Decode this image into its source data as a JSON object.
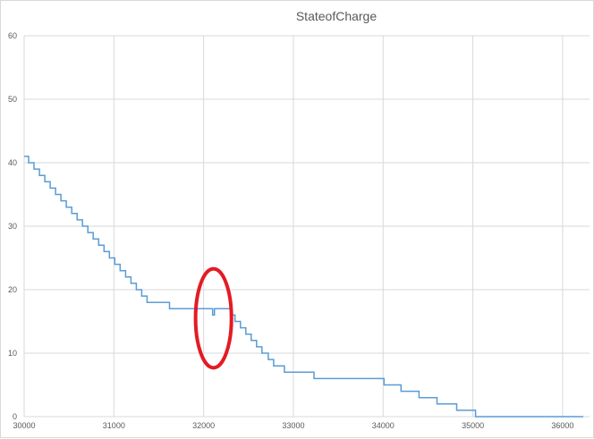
{
  "chart_data": {
    "type": "line",
    "title": "StateofCharge",
    "xlabel": "",
    "ylabel": "",
    "xlim": [
      30000,
      36300
    ],
    "ylim": [
      0,
      60
    ],
    "grid": true,
    "legend": "none",
    "line_color": "#5b9bd5",
    "xticks": [
      30000,
      31000,
      32000,
      33000,
      34000,
      35000,
      36000
    ],
    "yticks": [
      0,
      10,
      20,
      30,
      40,
      50,
      60
    ],
    "xtick_labels": [
      "30000",
      "31000",
      "32000",
      "33000",
      "34000",
      "35000",
      "36000"
    ],
    "ytick_labels": [
      "0",
      "10",
      "20",
      "30",
      "40",
      "50",
      "60"
    ],
    "series": [
      {
        "step": true,
        "x": [
          30000,
          30050,
          30110,
          30170,
          30230,
          30290,
          30350,
          30410,
          30470,
          30530,
          30590,
          30650,
          30710,
          30770,
          30830,
          30890,
          30950,
          31010,
          31070,
          31130,
          31190,
          31250,
          31310,
          31370,
          31620,
          32100,
          32120,
          32300,
          32350,
          32410,
          32470,
          32530,
          32590,
          32650,
          32720,
          32780,
          32840,
          32900,
          33230,
          34010,
          34200,
          34400,
          34600,
          34820,
          35030,
          35250,
          36230
        ],
        "y": [
          41,
          40,
          39,
          38,
          37,
          36,
          35,
          34,
          33,
          32,
          31,
          30,
          29,
          28,
          27,
          26,
          25,
          24,
          23,
          22,
          21,
          20,
          19,
          18,
          17,
          16,
          17,
          16,
          15,
          14,
          13,
          12,
          11,
          10,
          9,
          8,
          8,
          7,
          6,
          5,
          4,
          3,
          2,
          1,
          0,
          0,
          0
        ]
      }
    ],
    "annotations": [
      {
        "shape": "ellipse",
        "color": "#e31b23",
        "x_center": 32110,
        "y_center": 15.5,
        "x_radius": 200,
        "y_radius": 7.8
      }
    ]
  }
}
